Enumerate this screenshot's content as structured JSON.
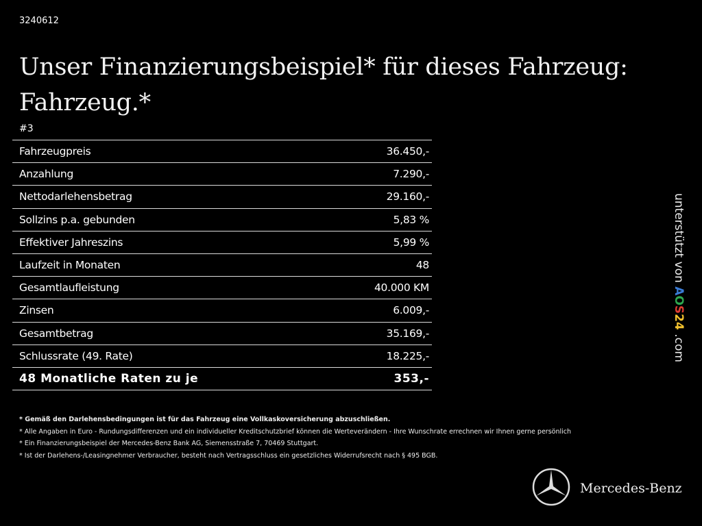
{
  "id": "3240612",
  "title_line1": "Unser Finanzierungsbeispiel* für dieses Fahrzeug:",
  "title_line2": "Fahrzeug.*",
  "number": "#3",
  "rows": [
    {
      "label": "Fahrzeugpreis",
      "value": "36.450,-"
    },
    {
      "label": "Anzahlung",
      "value": "7.290,-"
    },
    {
      "label": "Nettodarlehensbetrag",
      "value": "29.160,-"
    },
    {
      "label": "Sollzins p.a. gebunden",
      "value": "5,83 %"
    },
    {
      "label": "Effektiver Jahreszins",
      "value": "5,99 %"
    },
    {
      "label": "Laufzeit in Monaten",
      "value": "48"
    },
    {
      "label": "Gesamtlaufleistung",
      "value": "40.000 KM"
    },
    {
      "label": "Zinsen",
      "value": "6.009,-"
    },
    {
      "label": "Gesamtbetrag",
      "value": "35.169,-"
    },
    {
      "label": "Schlussrate (49. Rate)",
      "value": "18.225,-"
    },
    {
      "label": "48 Monatliche Raten zu je",
      "value": "353,-"
    }
  ],
  "notes": [
    "* Gemäß den Darlehensbedingungen ist für das Fahrzeug eine Vollkaskoversicherung abzuschließen.",
    "* Alle Angaben in Euro - Rundungsdifferenzen und ein individueller Kreditschutzbrief können die Werteverändern - Ihre Wunschrate errechnen wir Ihnen gerne persönlich",
    "* Ein Finanzierungsbeispiel der Mercedes-Benz Bank AG, Siemensstraße 7, 70469 Stuttgart.",
    "* Ist der Darlehens-/Leasingnehmer Verbraucher, besteht nach Vertragsschluss ein gesetzliches Widerrufsrecht nach § 495 BGB."
  ],
  "side": {
    "prefix": "unterstützt von ",
    "logo": [
      "A",
      "O",
      "S",
      "2",
      "4"
    ],
    "logo_colors": [
      "#3a7bd5",
      "#2fa84f",
      "#e03c31",
      "#f2c12e",
      "#f2c12e"
    ],
    "suffix": " .com"
  },
  "brand": "Mercedes-Benz"
}
